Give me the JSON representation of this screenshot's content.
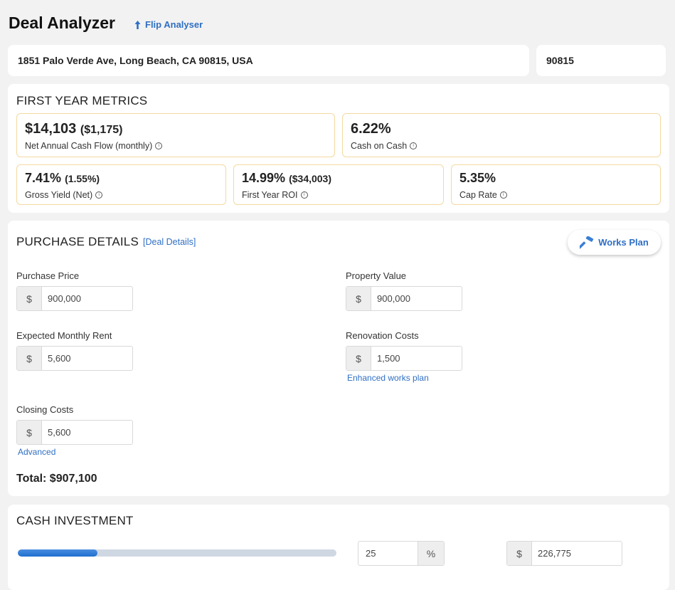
{
  "header": {
    "title": "Deal Analyzer",
    "flip_link": "Flip Analyser",
    "flip_icon": "arrow-up-icon"
  },
  "address": {
    "full": "1851 Palo Verde Ave, Long Beach, CA 90815, USA",
    "zip": "90815"
  },
  "first_year_metrics": {
    "heading": "FIRST YEAR METRICS",
    "net_cash_flow": {
      "value": "$14,103",
      "sub": "($1,175)",
      "label": "Net Annual Cash Flow (monthly)"
    },
    "cash_on_cash": {
      "value": "6.22%",
      "label": "Cash on Cash"
    },
    "gross_yield": {
      "value": "7.41%",
      "sub": "(1.55%)",
      "label": "Gross Yield (Net)"
    },
    "first_year_roi": {
      "value": "14.99%",
      "sub": "($34,003)",
      "label": "First Year ROI"
    },
    "cap_rate": {
      "value": "5.35%",
      "label": "Cap Rate"
    },
    "info_icon": "info-icon"
  },
  "purchase_details": {
    "heading": "PURCHASE DETAILS",
    "deal_details_link": "[Deal Details]",
    "works_plan_button": "Works Plan",
    "works_plan_icon": "hammer-icon",
    "currency_symbol": "$",
    "purchase_price": {
      "label": "Purchase Price",
      "value": "900,000"
    },
    "property_value": {
      "label": "Property Value",
      "value": "900,000"
    },
    "monthly_rent": {
      "label": "Expected Monthly Rent",
      "value": "5,600"
    },
    "renovation_costs": {
      "label": "Renovation Costs",
      "value": "1,500",
      "link": "Enhanced works plan"
    },
    "closing_costs": {
      "label": "Closing Costs",
      "value": "5,600",
      "link": "Advanced"
    },
    "total": "Total: $907,100"
  },
  "cash_investment": {
    "heading": "CASH INVESTMENT",
    "slider_fraction": 0.25,
    "percent_value": "25",
    "percent_symbol": "%",
    "currency_symbol": "$",
    "amount_value": "226,775"
  },
  "colors": {
    "accent": "#2f6fc4",
    "metric_border": "#f3d9a0",
    "background": "#f2f2f2"
  }
}
